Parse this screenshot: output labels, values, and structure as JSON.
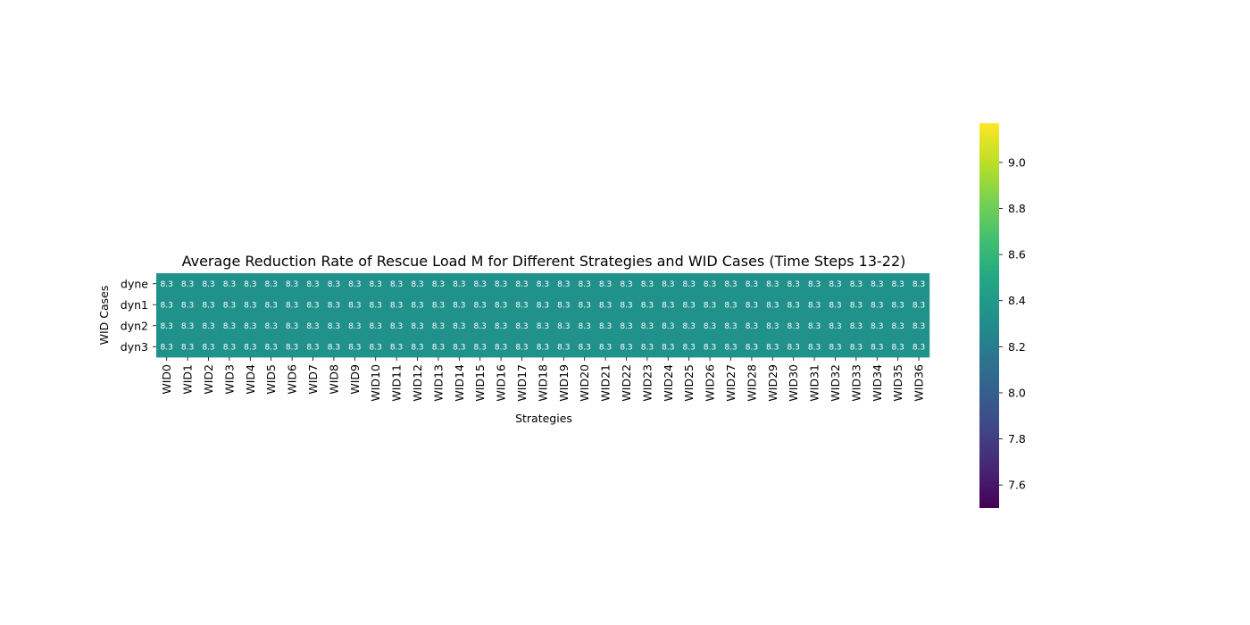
{
  "chart_data": {
    "type": "heatmap",
    "title": "Average Reduction Rate of Rescue Load M for Different Strategies and WID Cases (Time Steps 13-22)",
    "xlabel": "Strategies",
    "ylabel": "WID Cases",
    "x_categories": [
      "WID0",
      "WID1",
      "WID2",
      "WID3",
      "WID4",
      "WID5",
      "WID6",
      "WID7",
      "WID8",
      "WID9",
      "WID10",
      "WID11",
      "WID12",
      "WID13",
      "WID14",
      "WID15",
      "WID16",
      "WID17",
      "WID18",
      "WID19",
      "WID20",
      "WID21",
      "WID22",
      "WID23",
      "WID24",
      "WID25",
      "WID26",
      "WID27",
      "WID28",
      "WID29",
      "WID30",
      "WID31",
      "WID32",
      "WID33",
      "WID34",
      "WID35",
      "WID36"
    ],
    "y_categories": [
      "dyne",
      "dyn1",
      "dyn2",
      "dyn3"
    ],
    "values": [
      [
        8.3,
        8.3,
        8.3,
        8.3,
        8.3,
        8.3,
        8.3,
        8.3,
        8.3,
        8.3,
        8.3,
        8.3,
        8.3,
        8.3,
        8.3,
        8.3,
        8.3,
        8.3,
        8.3,
        8.3,
        8.3,
        8.3,
        8.3,
        8.3,
        8.3,
        8.3,
        8.3,
        8.3,
        8.3,
        8.3,
        8.3,
        8.3,
        8.3,
        8.3,
        8.3,
        8.3,
        8.3
      ],
      [
        8.3,
        8.3,
        8.3,
        8.3,
        8.3,
        8.3,
        8.3,
        8.3,
        8.3,
        8.3,
        8.3,
        8.3,
        8.3,
        8.3,
        8.3,
        8.3,
        8.3,
        8.3,
        8.3,
        8.3,
        8.3,
        8.3,
        8.3,
        8.3,
        8.3,
        8.3,
        8.3,
        8.3,
        8.3,
        8.3,
        8.3,
        8.3,
        8.3,
        8.3,
        8.3,
        8.3,
        8.3
      ],
      [
        8.3,
        8.3,
        8.3,
        8.3,
        8.3,
        8.3,
        8.3,
        8.3,
        8.3,
        8.3,
        8.3,
        8.3,
        8.3,
        8.3,
        8.3,
        8.3,
        8.3,
        8.3,
        8.3,
        8.3,
        8.3,
        8.3,
        8.3,
        8.3,
        8.3,
        8.3,
        8.3,
        8.3,
        8.3,
        8.3,
        8.3,
        8.3,
        8.3,
        8.3,
        8.3,
        8.3,
        8.3
      ],
      [
        8.3,
        8.3,
        8.3,
        8.3,
        8.3,
        8.3,
        8.3,
        8.3,
        8.3,
        8.3,
        8.3,
        8.3,
        8.3,
        8.3,
        8.3,
        8.3,
        8.3,
        8.3,
        8.3,
        8.3,
        8.3,
        8.3,
        8.3,
        8.3,
        8.3,
        8.3,
        8.3,
        8.3,
        8.3,
        8.3,
        8.3,
        8.3,
        8.3,
        8.3,
        8.3,
        8.3,
        8.3
      ]
    ],
    "cell_label_format": "1 decimal",
    "colormap": "viridis",
    "color_range": [
      7.5,
      9.17
    ],
    "colorbar_ticks": [
      7.6,
      7.8,
      8.0,
      8.2,
      8.4,
      8.6,
      8.8,
      9.0
    ],
    "colorbar_tick_labels": [
      "7.6",
      "7.8",
      "8.0",
      "8.2",
      "8.4",
      "8.6",
      "8.8",
      "9.0"
    ],
    "cell_color": "#21918c",
    "cell_text_color": "#ffffff"
  }
}
